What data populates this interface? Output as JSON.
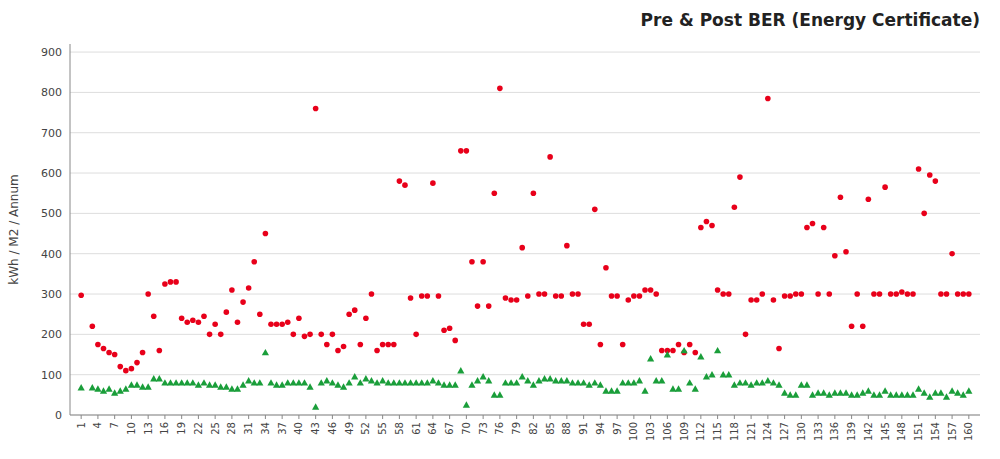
{
  "chart_data": {
    "type": "scatter",
    "title": "Pre & Post BER (Energy Certificate)",
    "y_label": "kWh / M2 / Annum",
    "x": [
      1,
      3,
      4,
      5,
      6,
      7,
      8,
      9,
      10,
      11,
      12,
      13,
      14,
      15,
      16,
      17,
      18,
      19,
      20,
      21,
      22,
      23,
      24,
      25,
      26,
      27,
      28,
      29,
      30,
      31,
      32,
      33,
      34,
      35,
      36,
      37,
      38,
      39,
      40,
      41,
      42,
      43,
      44,
      45,
      46,
      47,
      48,
      49,
      50,
      51,
      52,
      53,
      54,
      55,
      56,
      57,
      58,
      59,
      60,
      61,
      62,
      63,
      64,
      65,
      66,
      67,
      68,
      69,
      70,
      71,
      72,
      73,
      74,
      75,
      76,
      77,
      78,
      79,
      80,
      81,
      82,
      83,
      84,
      85,
      86,
      87,
      88,
      89,
      90,
      91,
      92,
      93,
      94,
      95,
      96,
      97,
      98,
      99,
      100,
      101,
      102,
      103,
      104,
      105,
      106,
      107,
      108,
      109,
      110,
      111,
      112,
      113,
      114,
      115,
      116,
      117,
      118,
      119,
      120,
      121,
      122,
      123,
      124,
      125,
      126,
      127,
      128,
      129,
      130,
      131,
      132,
      133,
      134,
      135,
      136,
      137,
      138,
      139,
      140,
      141,
      142,
      143,
      144,
      145,
      146,
      147,
      148,
      149,
      150,
      151,
      152,
      153,
      154,
      155,
      156,
      157,
      158,
      159,
      160
    ],
    "series": [
      {
        "color": "#e8001a",
        "marker": "circle",
        "values": [
          297,
          220,
          175,
          165,
          155,
          150,
          120,
          110,
          115,
          130,
          155,
          300,
          245,
          160,
          325,
          330,
          330,
          240,
          230,
          235,
          230,
          245,
          200,
          225,
          200,
          255,
          310,
          230,
          280,
          315,
          380,
          250,
          450,
          225,
          225,
          225,
          230,
          200,
          240,
          195,
          200,
          760,
          200,
          175,
          200,
          160,
          170,
          250,
          260,
          175,
          240,
          300,
          160,
          175,
          175,
          175,
          580,
          570,
          290,
          200,
          295,
          295,
          575,
          295,
          210,
          215,
          185,
          655,
          655,
          380,
          270,
          380,
          270,
          550,
          810,
          290,
          285,
          285,
          415,
          295,
          550,
          300,
          300,
          640,
          295,
          295,
          420,
          300,
          300,
          225,
          225,
          510,
          175,
          365,
          295,
          295,
          175,
          285,
          295,
          295,
          310,
          310,
          300,
          160,
          160,
          160,
          175,
          155,
          175,
          155,
          465,
          480,
          470,
          310,
          300,
          300,
          515,
          590,
          200,
          285,
          285,
          300,
          785,
          285,
          165,
          295,
          295,
          300,
          300,
          465,
          475,
          300,
          465,
          300,
          395,
          540,
          405,
          220,
          300,
          220,
          535,
          300,
          300,
          565,
          300,
          300,
          305,
          300,
          300,
          610,
          500,
          595,
          580,
          300,
          300,
          400,
          300,
          300,
          300
        ]
      },
      {
        "color": "#1a9e3a",
        "marker": "triangle",
        "values": [
          68,
          68,
          65,
          60,
          65,
          55,
          60,
          65,
          75,
          75,
          70,
          70,
          90,
          90,
          80,
          80,
          80,
          80,
          80,
          80,
          75,
          80,
          75,
          75,
          70,
          70,
          65,
          65,
          75,
          85,
          80,
          80,
          155,
          80,
          75,
          75,
          80,
          80,
          80,
          80,
          70,
          20,
          80,
          85,
          80,
          75,
          70,
          80,
          95,
          80,
          90,
          85,
          80,
          85,
          80,
          80,
          80,
          80,
          80,
          80,
          80,
          80,
          85,
          80,
          75,
          75,
          75,
          110,
          25,
          75,
          85,
          95,
          85,
          50,
          50,
          80,
          80,
          80,
          95,
          85,
          75,
          85,
          90,
          90,
          85,
          85,
          85,
          80,
          80,
          80,
          75,
          80,
          75,
          60,
          60,
          60,
          80,
          80,
          80,
          85,
          60,
          140,
          85,
          85,
          150,
          65,
          65,
          160,
          80,
          65,
          145,
          95,
          100,
          160,
          100,
          100,
          75,
          80,
          80,
          75,
          80,
          80,
          85,
          80,
          75,
          55,
          50,
          50,
          75,
          75,
          50,
          55,
          55,
          50,
          55,
          55,
          55,
          50,
          50,
          55,
          60,
          50,
          50,
          60,
          50,
          50,
          50,
          50,
          50,
          65,
          55,
          45,
          55,
          55,
          45,
          60,
          55,
          50,
          60
        ]
      }
    ],
    "xlim": [
      -1,
      162
    ],
    "xticks": [
      1,
      4,
      7,
      10,
      13,
      16,
      19,
      22,
      25,
      28,
      31,
      34,
      37,
      40,
      43,
      46,
      49,
      52,
      55,
      58,
      61,
      64,
      67,
      70,
      73,
      76,
      79,
      82,
      85,
      88,
      91,
      94,
      97,
      100,
      103,
      106,
      109,
      112,
      115,
      118,
      121,
      124,
      127,
      130,
      133,
      136,
      139,
      142,
      145,
      148,
      151,
      154,
      157,
      160
    ],
    "ylim": [
      0,
      920
    ],
    "yticks": [
      0,
      100,
      200,
      300,
      400,
      500,
      600,
      700,
      800,
      900
    ],
    "grid": true
  }
}
